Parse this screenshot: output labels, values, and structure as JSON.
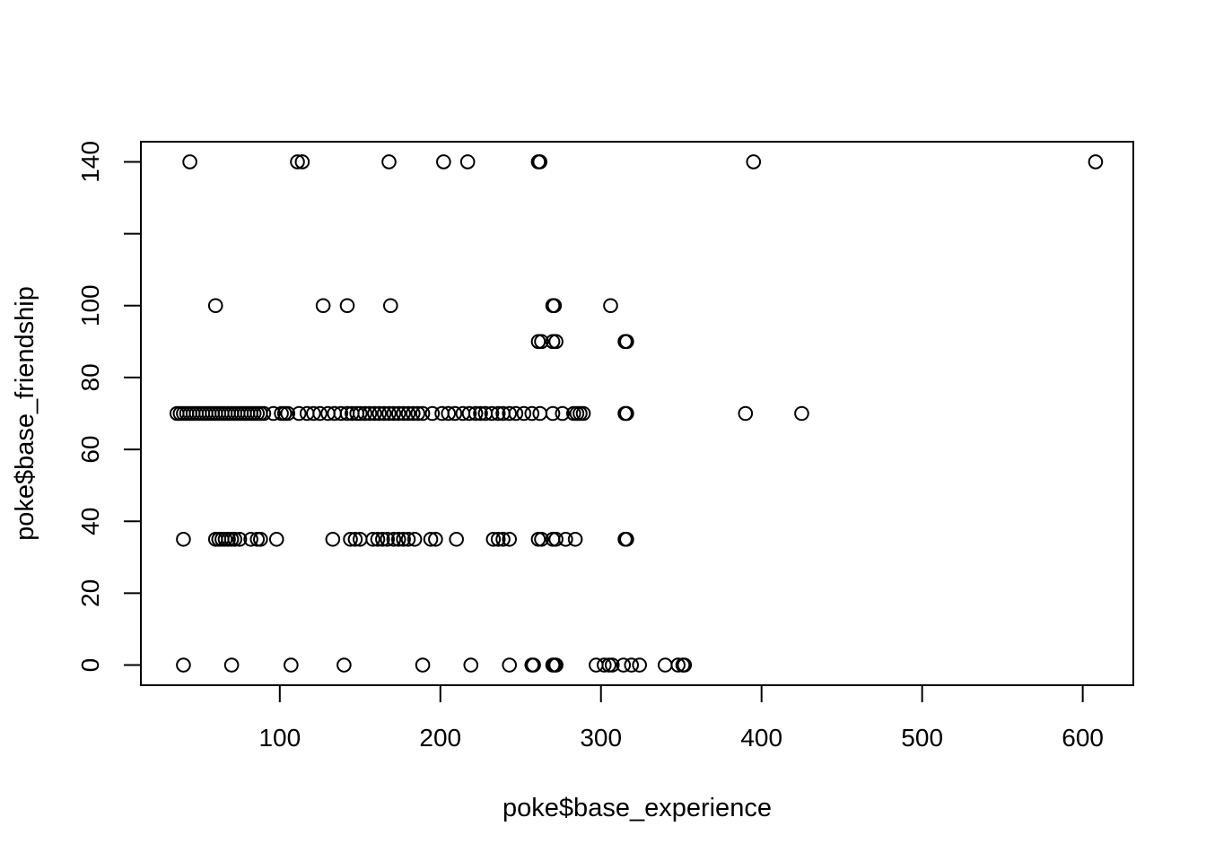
{
  "chart_data": {
    "type": "scatter",
    "xlabel": "poke$base_experience",
    "ylabel": "poke$base_friendship",
    "xlim": [
      13.5,
      631.5
    ],
    "ylim": [
      -5.6,
      145.6
    ],
    "x_ticks": [
      100,
      200,
      300,
      400,
      500,
      600
    ],
    "y_ticks": [
      0,
      20,
      40,
      60,
      80,
      100,
      120,
      140
    ],
    "y_tick_labels": [
      "0",
      "20",
      "40",
      "60",
      "80",
      "100",
      "",
      "140"
    ],
    "grid": false,
    "legend": "none",
    "marker": "open-circle",
    "color": "#000000",
    "points": [
      [
        44,
        140
      ],
      [
        111,
        140
      ],
      [
        114,
        140
      ],
      [
        168,
        140
      ],
      [
        202,
        140
      ],
      [
        217,
        140
      ],
      [
        261,
        140
      ],
      [
        262,
        140
      ],
      [
        395,
        140
      ],
      [
        608,
        140
      ],
      [
        60,
        100
      ],
      [
        127,
        100
      ],
      [
        142,
        100
      ],
      [
        169,
        100
      ],
      [
        270,
        100
      ],
      [
        271,
        100
      ],
      [
        306,
        100
      ],
      [
        261,
        90
      ],
      [
        263,
        90
      ],
      [
        270,
        90
      ],
      [
        272,
        90
      ],
      [
        315,
        90
      ],
      [
        316,
        90
      ],
      [
        36,
        70
      ],
      [
        38,
        70
      ],
      [
        40,
        70
      ],
      [
        42,
        70
      ],
      [
        44,
        70
      ],
      [
        46,
        70
      ],
      [
        48,
        70
      ],
      [
        50,
        70
      ],
      [
        52,
        70
      ],
      [
        54,
        70
      ],
      [
        56,
        70
      ],
      [
        58,
        70
      ],
      [
        60,
        70
      ],
      [
        62,
        70
      ],
      [
        64,
        70
      ],
      [
        66,
        70
      ],
      [
        68,
        70
      ],
      [
        70,
        70
      ],
      [
        72,
        70
      ],
      [
        74,
        70
      ],
      [
        76,
        70
      ],
      [
        78,
        70
      ],
      [
        80,
        70
      ],
      [
        82,
        70
      ],
      [
        84,
        70
      ],
      [
        86,
        70
      ],
      [
        88,
        70
      ],
      [
        90,
        70
      ],
      [
        96,
        70
      ],
      [
        101,
        70
      ],
      [
        103,
        70
      ],
      [
        105,
        70
      ],
      [
        112,
        70
      ],
      [
        117,
        70
      ],
      [
        121,
        70
      ],
      [
        125,
        70
      ],
      [
        130,
        70
      ],
      [
        134,
        70
      ],
      [
        138,
        70
      ],
      [
        142,
        70
      ],
      [
        145,
        70
      ],
      [
        148,
        70
      ],
      [
        150,
        70
      ],
      [
        153,
        70
      ],
      [
        156,
        70
      ],
      [
        159,
        70
      ],
      [
        162,
        70
      ],
      [
        165,
        70
      ],
      [
        168,
        70
      ],
      [
        171,
        70
      ],
      [
        174,
        70
      ],
      [
        177,
        70
      ],
      [
        180,
        70
      ],
      [
        183,
        70
      ],
      [
        186,
        70
      ],
      [
        189,
        70
      ],
      [
        195,
        70
      ],
      [
        201,
        70
      ],
      [
        205,
        70
      ],
      [
        209,
        70
      ],
      [
        214,
        70
      ],
      [
        218,
        70
      ],
      [
        222,
        70
      ],
      [
        225,
        70
      ],
      [
        228,
        70
      ],
      [
        232,
        70
      ],
      [
        236,
        70
      ],
      [
        239,
        70
      ],
      [
        243,
        70
      ],
      [
        247,
        70
      ],
      [
        252,
        70
      ],
      [
        257,
        70
      ],
      [
        262,
        70
      ],
      [
        270,
        70
      ],
      [
        276,
        70
      ],
      [
        283,
        70
      ],
      [
        285,
        70
      ],
      [
        287,
        70
      ],
      [
        289,
        70
      ],
      [
        315,
        70
      ],
      [
        316,
        70
      ],
      [
        390,
        70
      ],
      [
        425,
        70
      ],
      [
        40,
        35
      ],
      [
        60,
        35
      ],
      [
        62,
        35
      ],
      [
        64,
        35
      ],
      [
        66,
        35
      ],
      [
        68,
        35
      ],
      [
        70,
        35
      ],
      [
        72,
        35
      ],
      [
        75,
        35
      ],
      [
        82,
        35
      ],
      [
        86,
        35
      ],
      [
        88,
        35
      ],
      [
        98,
        35
      ],
      [
        133,
        35
      ],
      [
        144,
        35
      ],
      [
        147,
        35
      ],
      [
        150,
        35
      ],
      [
        158,
        35
      ],
      [
        161,
        35
      ],
      [
        164,
        35
      ],
      [
        167,
        35
      ],
      [
        171,
        35
      ],
      [
        174,
        35
      ],
      [
        177,
        35
      ],
      [
        180,
        35
      ],
      [
        184,
        35
      ],
      [
        194,
        35
      ],
      [
        197,
        35
      ],
      [
        210,
        35
      ],
      [
        233,
        35
      ],
      [
        236,
        35
      ],
      [
        239,
        35
      ],
      [
        243,
        35
      ],
      [
        261,
        35
      ],
      [
        263,
        35
      ],
      [
        270,
        35
      ],
      [
        272,
        35
      ],
      [
        278,
        35
      ],
      [
        284,
        35
      ],
      [
        315,
        35
      ],
      [
        316,
        35
      ],
      [
        40,
        0
      ],
      [
        70,
        0
      ],
      [
        107,
        0
      ],
      [
        140,
        0
      ],
      [
        189,
        0
      ],
      [
        219,
        0
      ],
      [
        243,
        0
      ],
      [
        257,
        0
      ],
      [
        258,
        0
      ],
      [
        270,
        0
      ],
      [
        271,
        0
      ],
      [
        272,
        0
      ],
      [
        297,
        0
      ],
      [
        302,
        0
      ],
      [
        305,
        0
      ],
      [
        307,
        0
      ],
      [
        314,
        0
      ],
      [
        319,
        0
      ],
      [
        324,
        0
      ],
      [
        340,
        0
      ],
      [
        348,
        0
      ],
      [
        351,
        0
      ],
      [
        352,
        0
      ]
    ]
  }
}
